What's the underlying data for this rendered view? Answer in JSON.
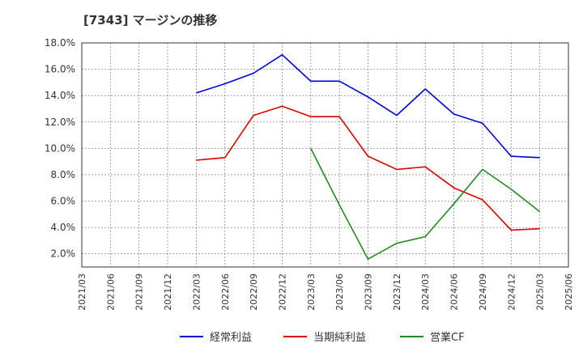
{
  "chart_data": {
    "type": "line",
    "title": "[7343]  マージンの推移",
    "xlabel": "",
    "ylabel": "",
    "x": [
      "2021/03",
      "2021/06",
      "2021/09",
      "2021/12",
      "2022/03",
      "2022/06",
      "2022/09",
      "2022/12",
      "2023/03",
      "2023/06",
      "2023/09",
      "2023/12",
      "2024/03",
      "2024/06",
      "2024/09",
      "2024/12",
      "2025/03",
      "2025/06"
    ],
    "ylim": [
      1.0,
      18.0
    ],
    "yticks": [
      "2.0%",
      "4.0%",
      "6.0%",
      "8.0%",
      "10.0%",
      "12.0%",
      "14.0%",
      "16.0%",
      "18.0%"
    ],
    "ytick_values": [
      2,
      4,
      6,
      8,
      10,
      12,
      14,
      16,
      18
    ],
    "grid": true,
    "legend_position": "bottom",
    "series": [
      {
        "name": "経常利益",
        "color": "#0000dd",
        "values": [
          null,
          null,
          null,
          null,
          14.2,
          14.9,
          15.7,
          17.1,
          15.1,
          15.1,
          13.9,
          12.5,
          14.5,
          12.6,
          11.9,
          9.4,
          9.3,
          null
        ]
      },
      {
        "name": "当期純利益",
        "color": "#dd0000",
        "values": [
          null,
          null,
          null,
          null,
          9.1,
          9.3,
          12.5,
          13.2,
          12.4,
          12.4,
          9.4,
          8.4,
          8.6,
          7.0,
          6.1,
          3.8,
          3.9,
          null
        ]
      },
      {
        "name": "営業CF",
        "color": "#228B22",
        "values": [
          null,
          null,
          null,
          null,
          null,
          null,
          null,
          null,
          10.0,
          5.7,
          1.6,
          2.8,
          3.3,
          5.8,
          8.4,
          6.9,
          5.2,
          null
        ]
      }
    ]
  }
}
